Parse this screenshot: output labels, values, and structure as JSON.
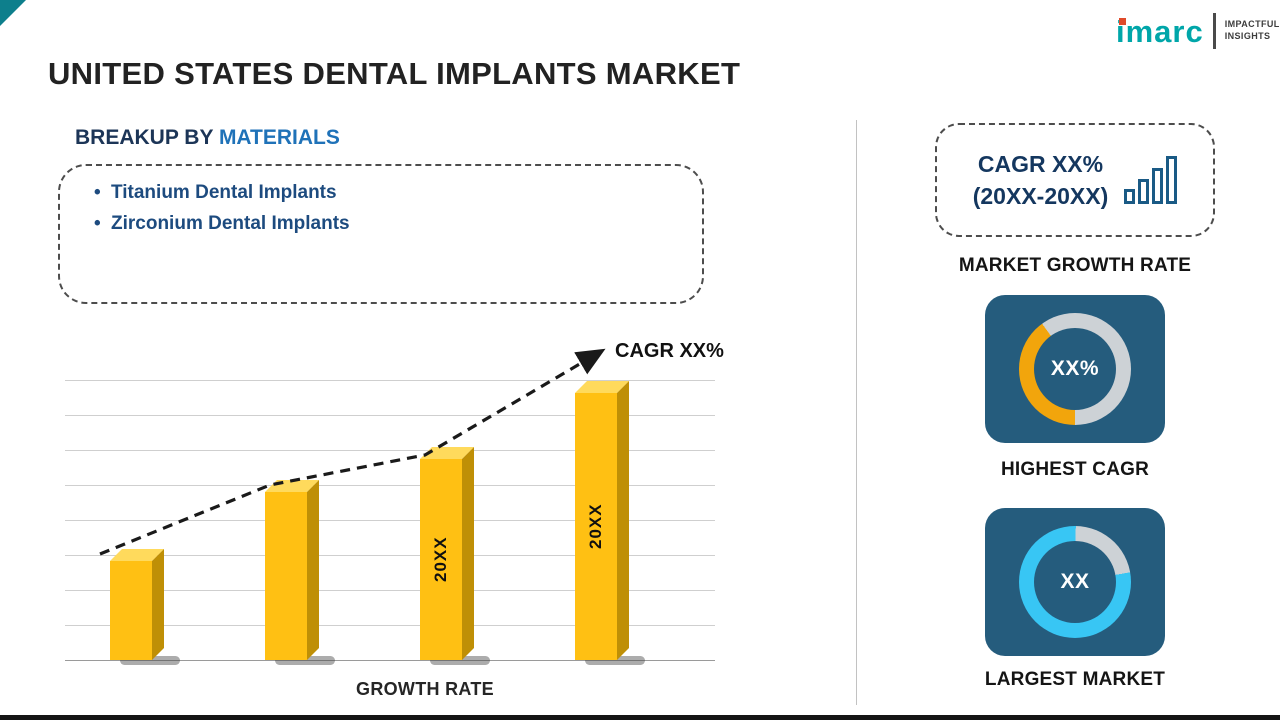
{
  "page": {
    "title": "UNITED STATES DENTAL IMPLANTS MARKET"
  },
  "logo": {
    "brand": "imarc",
    "tagline": [
      "IMPACTFUL",
      "INSIGHTS"
    ],
    "brand_color": "#00A6A9",
    "accent_color": "#E04A2A"
  },
  "breakup": {
    "heading_prefix": "BREAKUP BY",
    "heading_highlight": "MATERIALS",
    "items": [
      "Titanium Dental Implants",
      "Zirconium Dental Implants"
    ]
  },
  "chart_data": {
    "type": "bar",
    "title": "",
    "categories": [
      "",
      "",
      "20XX",
      "20XX"
    ],
    "values": [
      36,
      61,
      73,
      97
    ],
    "bar_labels": [
      "",
      "",
      "20XX",
      "20XX"
    ],
    "xlabel": "GROWTH RATE",
    "ylabel": "",
    "ylim": [
      0,
      100
    ],
    "grid": true,
    "legend": false,
    "annotation": "CAGR XX%",
    "bar_color": "#FFC013",
    "bar_side_color": "#BF8F06",
    "bar_top_color": "#FFDA5C",
    "trend_style": "dashed-arrow",
    "trend_color": "#1A1A1A"
  },
  "sidebar": {
    "cagr_box": {
      "line1": "CAGR XX%",
      "line2": "(20XX-20XX)"
    },
    "growth_rate_label": "MARKET GROWTH RATE",
    "cards": [
      {
        "value": "XX%",
        "label": "HIGHEST CAGR",
        "percent": 40,
        "ring_color": "#F2A50C",
        "ring_bg": "#CDD2D6",
        "card_color": "#255C7D"
      },
      {
        "value": "XX",
        "label": "LARGEST MARKET",
        "percent": 78,
        "ring_color": "#38C6F4",
        "ring_bg": "#CDD2D6",
        "card_color": "#255C7D"
      }
    ]
  }
}
